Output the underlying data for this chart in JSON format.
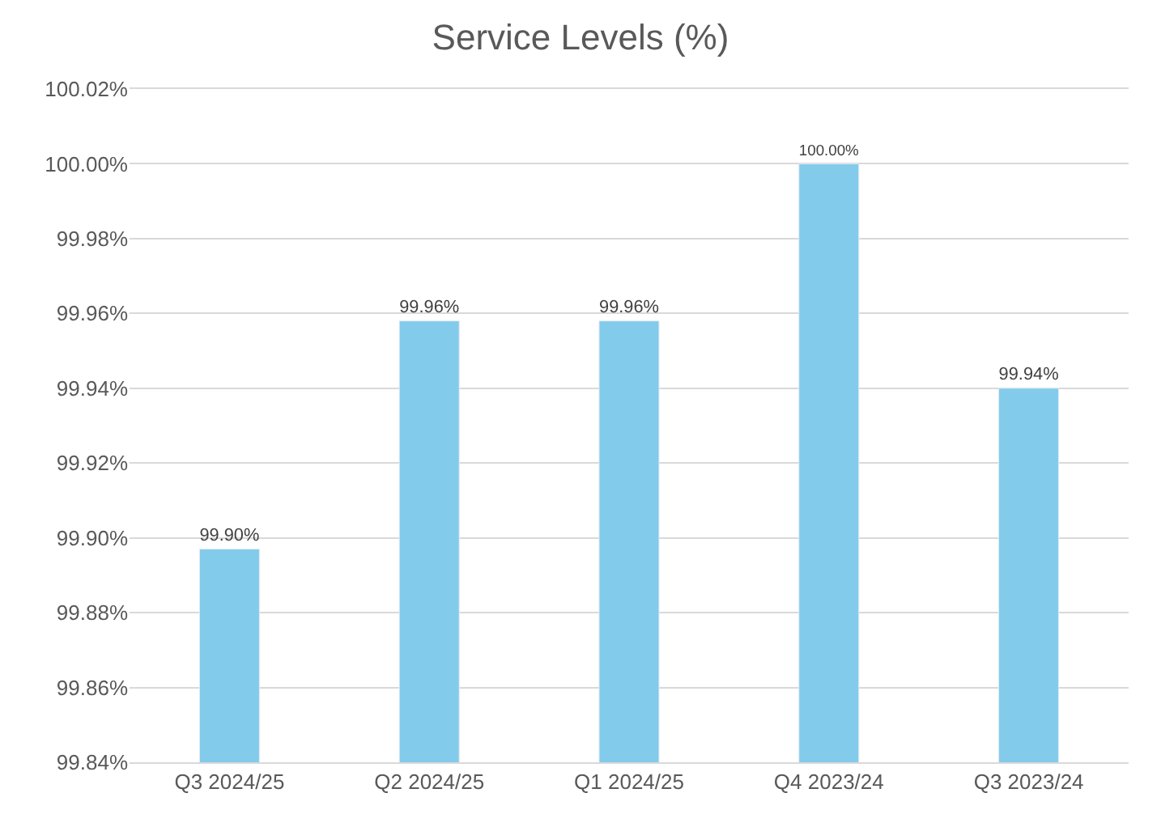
{
  "chart_data": {
    "type": "bar",
    "title": "Service Levels (%)",
    "categories": [
      "Q3 2024/25",
      "Q2 2024/25",
      "Q1 2024/25",
      "Q4 2023/24",
      "Q3 2023/24"
    ],
    "values": [
      99.897,
      99.958,
      99.958,
      100.0,
      99.94
    ],
    "value_labels": [
      "99.90%",
      "99.96%",
      "99.96%",
      "100.00%",
      "99.94%"
    ],
    "color": "#83cbeb",
    "ylim": [
      99.84,
      100.02
    ],
    "yticks": [
      {
        "value": 99.84,
        "label": "99.84%"
      },
      {
        "value": 99.86,
        "label": "99.86%"
      },
      {
        "value": 99.88,
        "label": "99.88%"
      },
      {
        "value": 99.9,
        "label": "99.90%"
      },
      {
        "value": 99.92,
        "label": "99.92%"
      },
      {
        "value": 99.94,
        "label": "99.94%"
      },
      {
        "value": 99.96,
        "label": "99.96%"
      },
      {
        "value": 99.98,
        "label": "99.98%"
      },
      {
        "value": 100.0,
        "label": "100.00%"
      },
      {
        "value": 100.02,
        "label": "100.02%"
      }
    ],
    "grid": "y"
  }
}
